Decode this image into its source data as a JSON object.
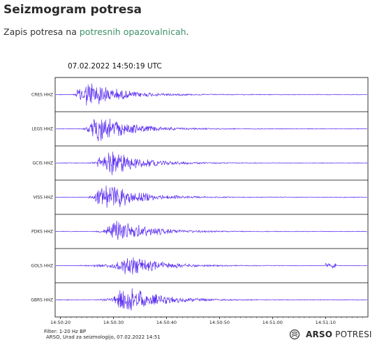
{
  "page": {
    "title": "Seizmogram potresa",
    "intro_prefix": "Zapis potresa na ",
    "intro_link": "potresnih opazovalnicah",
    "intro_suffix": "."
  },
  "seismogram": {
    "datetime": "07.02.2022  14:50:19 UTC",
    "trace_color": "#5a2df0",
    "time_ticks": [
      "14:50:20",
      "14:50:30",
      "14:50:40",
      "14:50:50",
      "14:51:00",
      "14:51:10"
    ],
    "stations": [
      {
        "label": "CRES HHZ",
        "onset_s": 3.0,
        "peak_s": 6.5,
        "amplitude": 1.0
      },
      {
        "label": "LEGS HHZ",
        "onset_s": 4.5,
        "peak_s": 8.5,
        "amplitude": 1.0
      },
      {
        "label": "GCIS HHZ",
        "onset_s": 6.0,
        "peak_s": 10.5,
        "amplitude": 0.95
      },
      {
        "label": "VISS HHZ",
        "onset_s": 5.0,
        "peak_s": 10.0,
        "amplitude": 1.0
      },
      {
        "label": "PDKS HHZ",
        "onset_s": 7.0,
        "peak_s": 12.0,
        "amplitude": 0.9
      },
      {
        "label": "GOLS HHZ",
        "onset_s": 3.5,
        "peak_s": 14.0,
        "amplitude": 0.75
      },
      {
        "label": "GBRS HHZ",
        "onset_s": 7.5,
        "peak_s": 13.5,
        "amplitude": 1.0
      }
    ],
    "filter_text": "Filter: 1-20 Hz BP",
    "credit_text": "ARSO, Urad za seizmologijo, 07.02.2022  14:51"
  },
  "brand": {
    "logo_icon": "arso-logo-icon",
    "name_bold": "ARSO",
    "name_light": " POTRESI"
  }
}
